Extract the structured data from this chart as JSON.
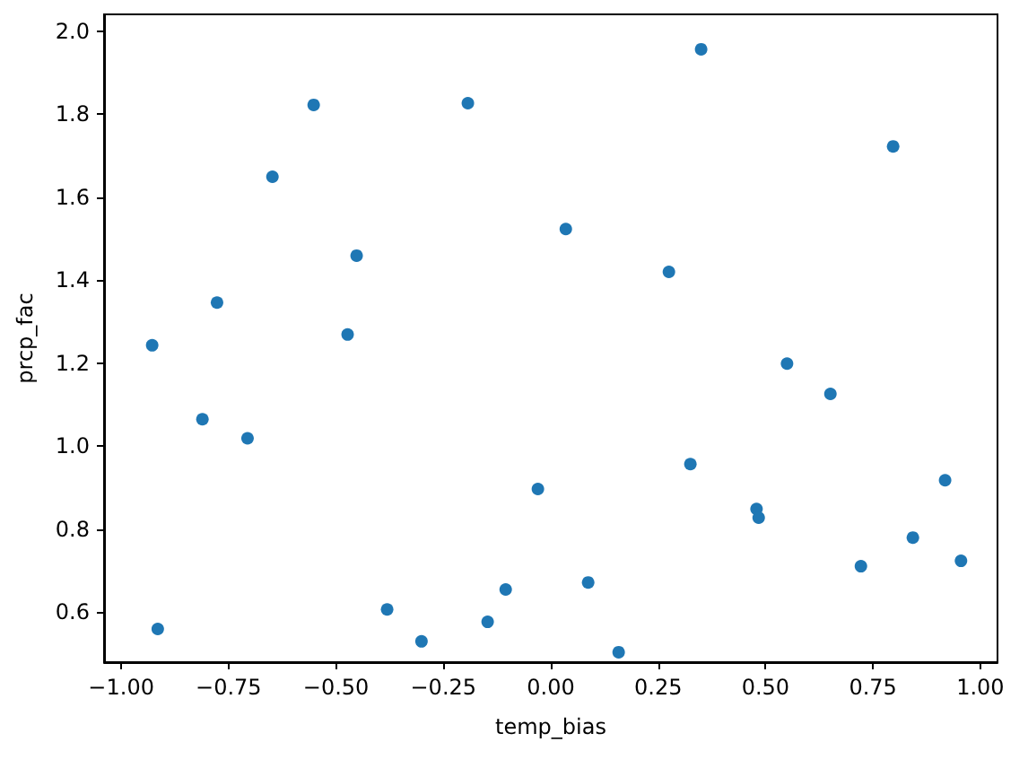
{
  "chart_data": {
    "type": "scatter",
    "xlabel": "temp_bias",
    "ylabel": "prcp_fac",
    "grid": false,
    "marker": "circle",
    "xlim": [
      -1.04,
      1.04
    ],
    "ylim": [
      0.48,
      2.04
    ],
    "xticks": [
      {
        "value": -1,
        "label": "−1.00"
      },
      {
        "value": -0.75,
        "label": "−0.75"
      },
      {
        "value": -0.5,
        "label": "−0.50"
      },
      {
        "value": -0.25,
        "label": "−0.25"
      },
      {
        "value": 0,
        "label": "0.00"
      },
      {
        "value": 0.25,
        "label": "0.25"
      },
      {
        "value": 0.5,
        "label": "0.50"
      },
      {
        "value": 0.75,
        "label": "0.75"
      },
      {
        "value": 1,
        "label": "1.00"
      }
    ],
    "yticks": [
      {
        "value": 0.6,
        "label": "0.6"
      },
      {
        "value": 0.8,
        "label": "0.8"
      },
      {
        "value": 1,
        "label": "1.0"
      },
      {
        "value": 1.2,
        "label": "1.2"
      },
      {
        "value": 1.4,
        "label": "1.4"
      },
      {
        "value": 1.6,
        "label": "1.6"
      },
      {
        "value": 1.8,
        "label": "1.8"
      },
      {
        "value": 2,
        "label": "2.0"
      }
    ],
    "series": [
      {
        "color": "#1f77b4",
        "x": [
          0.55,
          0.651,
          0.325,
          0.479,
          0.484,
          0.918,
          0.843,
          0.955,
          0.722,
          0.087,
          0.158,
          -0.928,
          -0.473,
          -0.811,
          -0.706,
          -0.03,
          -0.915,
          -0.381,
          -0.301,
          -0.147,
          -0.105,
          -0.552,
          -0.193,
          -0.648,
          -0.452,
          -0.777,
          0.035,
          0.35,
          0.797,
          0.275
        ],
        "values": [
          1.199,
          1.126,
          0.957,
          0.849,
          0.828,
          0.918,
          0.78,
          0.724,
          0.711,
          0.672,
          0.504,
          1.243,
          1.269,
          1.065,
          1.019,
          0.897,
          0.56,
          0.607,
          0.53,
          0.577,
          0.655,
          1.822,
          1.826,
          1.649,
          1.459,
          1.346,
          1.523,
          1.956,
          1.722,
          1.42
        ]
      }
    ]
  }
}
